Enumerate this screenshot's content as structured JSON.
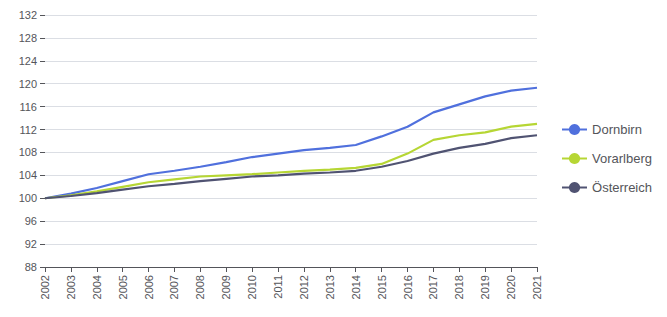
{
  "chart_data": {
    "type": "line",
    "x": [
      2002,
      2003,
      2004,
      2005,
      2006,
      2007,
      2008,
      2009,
      2010,
      2011,
      2012,
      2013,
      2014,
      2015,
      2016,
      2017,
      2018,
      2019,
      2020,
      2021
    ],
    "series": [
      {
        "name": "Dornbirn",
        "values": [
          100.0,
          100.8,
          101.8,
          103.0,
          104.2,
          104.8,
          105.5,
          106.3,
          107.2,
          107.8,
          108.4,
          108.8,
          109.3,
          110.8,
          112.5,
          115.0,
          116.4,
          117.8,
          118.8,
          119.3
        ]
      },
      {
        "name": "Vorarlberg",
        "values": [
          100.0,
          100.5,
          101.2,
          102.0,
          102.8,
          103.3,
          103.8,
          104.0,
          104.2,
          104.5,
          104.8,
          105.0,
          105.3,
          106.0,
          107.8,
          110.2,
          111.0,
          111.5,
          112.5,
          113.0
        ]
      },
      {
        "name": "Österreich",
        "values": [
          100.0,
          100.4,
          100.9,
          101.5,
          102.1,
          102.5,
          103.0,
          103.4,
          103.8,
          104.0,
          104.3,
          104.5,
          104.8,
          105.5,
          106.5,
          107.8,
          108.8,
          109.5,
          110.5,
          111.0
        ]
      }
    ],
    "xlim": [
      2002,
      2021
    ],
    "xticks": [
      2002,
      2003,
      2004,
      2005,
      2006,
      2007,
      2008,
      2009,
      2010,
      2011,
      2012,
      2013,
      2014,
      2015,
      2016,
      2017,
      2018,
      2019,
      2020,
      2021
    ],
    "ylim": [
      88,
      132
    ],
    "yticks": [
      88,
      92,
      96,
      100,
      104,
      108,
      112,
      116,
      120,
      124,
      128,
      132
    ],
    "grid": true,
    "legend": "right"
  }
}
